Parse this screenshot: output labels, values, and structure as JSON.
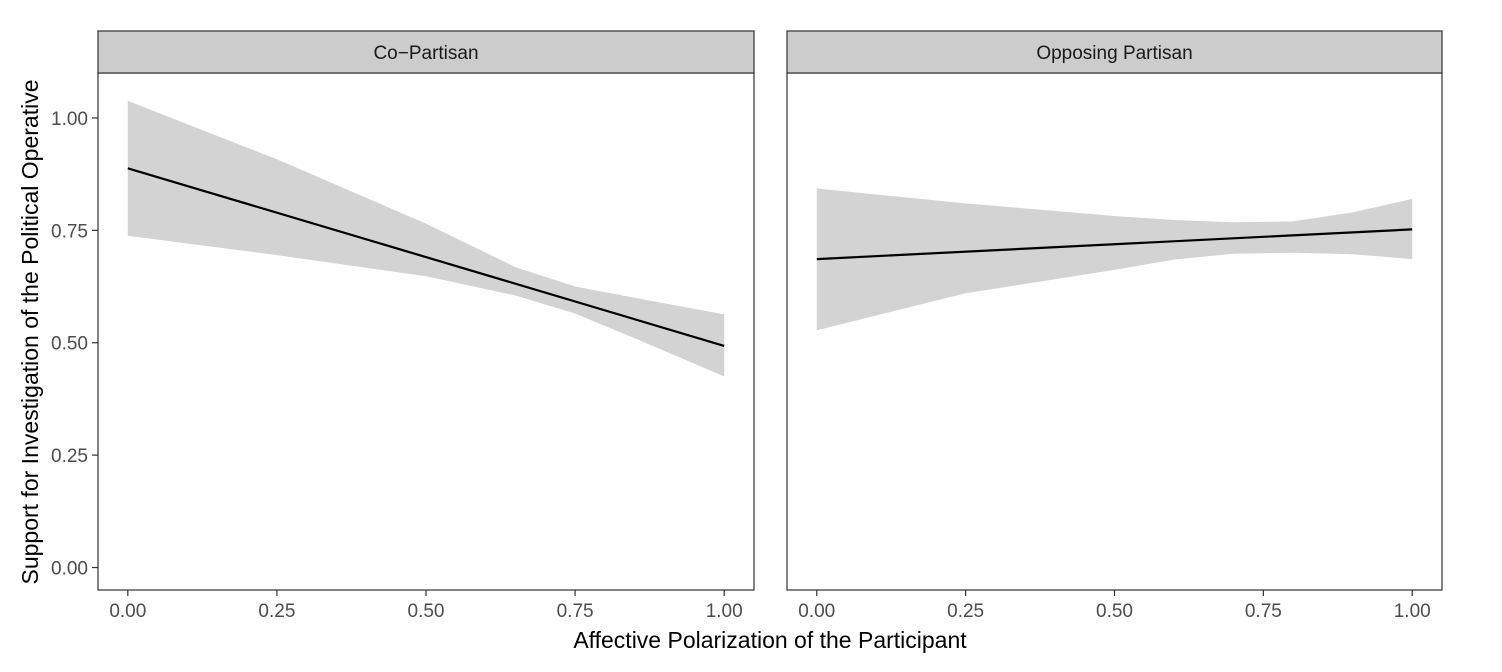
{
  "chart_data": {
    "type": "line",
    "xlabel": "Affective Polarization of the Participant",
    "ylabel": "Support for Investigation of the Political Operative",
    "xlim": [
      -0.05,
      1.05
    ],
    "ylim": [
      -0.05,
      1.1
    ],
    "x_ticks": [
      0.0,
      0.25,
      0.5,
      0.75,
      1.0
    ],
    "x_tick_labels": [
      "0.00",
      "0.25",
      "0.50",
      "0.75",
      "1.00"
    ],
    "y_ticks": [
      0.0,
      0.25,
      0.5,
      0.75,
      1.0
    ],
    "y_tick_labels": [
      "0.00",
      "0.25",
      "0.50",
      "0.75",
      "1.00"
    ],
    "grid": false,
    "band_color": "#d3d3d3",
    "line_color": "#000000",
    "strip_color": "#cccccc",
    "panels": [
      {
        "label": "Co−Partisan",
        "line": {
          "x": [
            0.0,
            1.0
          ],
          "y": [
            0.888,
            0.493
          ]
        },
        "ribbon": {
          "x": [
            0.0,
            0.25,
            0.5,
            0.65,
            0.75,
            0.85,
            1.0
          ],
          "lower": [
            0.738,
            0.695,
            0.648,
            0.605,
            0.565,
            0.51,
            0.425
          ],
          "upper": [
            1.038,
            0.908,
            0.765,
            0.668,
            0.625,
            0.6,
            0.563
          ]
        }
      },
      {
        "label": "Opposing Partisan",
        "line": {
          "x": [
            0.0,
            1.0
          ],
          "y": [
            0.686,
            0.752
          ]
        },
        "ribbon": {
          "x": [
            0.0,
            0.25,
            0.5,
            0.6,
            0.7,
            0.8,
            0.9,
            1.0
          ],
          "lower": [
            0.528,
            0.61,
            0.662,
            0.685,
            0.698,
            0.7,
            0.697,
            0.686
          ],
          "upper": [
            0.843,
            0.81,
            0.782,
            0.773,
            0.768,
            0.77,
            0.79,
            0.82
          ]
        }
      }
    ]
  }
}
